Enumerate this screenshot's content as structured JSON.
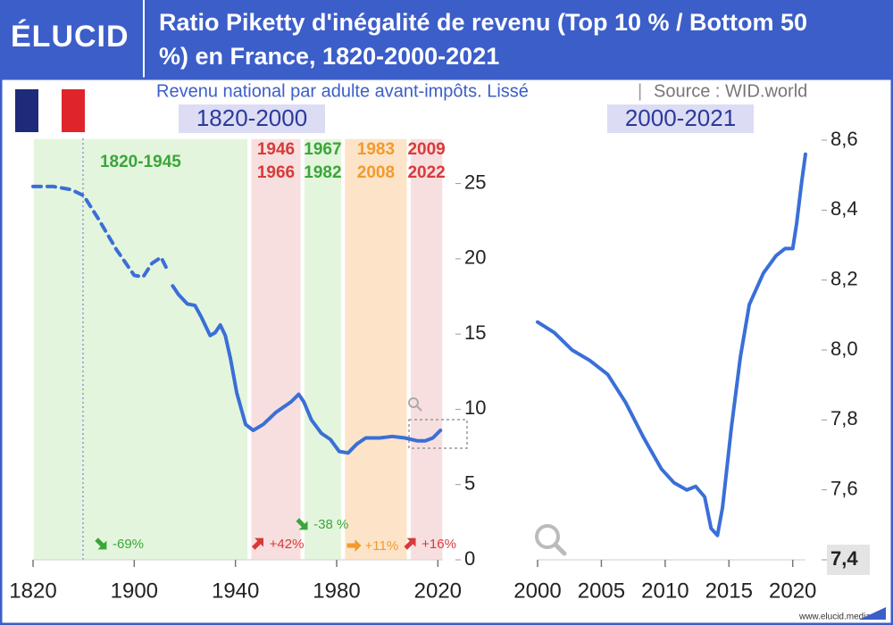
{
  "header": {
    "logo": "ÉLUCID",
    "title": "Ratio Piketty d'inégalité de revenu (Top 10 % / Bottom 50 %) en France, 1820-2000-2021",
    "subtitle": "Revenu national par adulte avant-impôts. Lissé",
    "source": "Source : WID.world"
  },
  "footer": "www.elucid.media",
  "chart_data": [
    {
      "type": "line",
      "title": "1820-2000",
      "x_tick_spacing": "even",
      "xlim": [
        1820,
        2022
      ],
      "xticks": [
        1820,
        1900,
        1940,
        1980,
        2020
      ],
      "ylim": [
        0,
        28
      ],
      "yticks": [
        0,
        5,
        10,
        15,
        20,
        25
      ],
      "series": [
        {
          "color": "#3a6fd8",
          "dashed": true,
          "x": [
            1820,
            1836,
            1850,
            1860,
            1872,
            1886,
            1900,
            1903.5,
            1907,
            1910.6,
            1912.7
          ],
          "values": [
            24.8,
            24.8,
            24.6,
            24.2,
            22.6,
            20.6,
            18.9,
            18.8,
            19.7,
            20.1,
            19.4
          ]
        },
        {
          "color": "#3a6fd8",
          "dashed": false,
          "x": [
            1915.2,
            1917.6,
            1921,
            1924,
            1926.6,
            1930,
            1932,
            1934,
            1936,
            1938,
            1940.5,
            1944,
            1947,
            1951,
            1956,
            1962,
            1965,
            1967,
            1970,
            1974,
            1977.5,
            1981,
            1984.5,
            1988,
            1991.5,
            1997,
            2002,
            2007,
            2012,
            2015,
            2018,
            2021
          ],
          "values": [
            18.2,
            17.6,
            17.0,
            16.9,
            16.1,
            14.9,
            15.1,
            15.6,
            14.9,
            13.4,
            11.1,
            9.0,
            8.6,
            9.0,
            9.8,
            10.5,
            11.0,
            10.5,
            9.3,
            8.4,
            8.0,
            7.2,
            7.1,
            7.7,
            8.1,
            8.1,
            8.2,
            8.1,
            7.9,
            7.9,
            8.1,
            8.6
          ]
        }
      ],
      "periods": [
        {
          "label": "1820-1945",
          "start": 1820,
          "end": 1945,
          "change": "-69%",
          "color": "#3aa63a",
          "shade": "#e4f5dd"
        },
        {
          "start": 1946,
          "end": 1966,
          "change": "+42%",
          "color": "#d83a3a",
          "shade": "#f8dfdf"
        },
        {
          "start": 1967,
          "end": 1982,
          "change": "-38 %",
          "color": "#3aa63a",
          "shade": "#e4f5dd"
        },
        {
          "start": 1983,
          "end": 2008,
          "change": "+11%",
          "color": "#f39a2c",
          "shade": "#fde4c9"
        },
        {
          "start": 2009,
          "end": 2022,
          "change": "+16%",
          "color": "#d83a3a",
          "shade": "#f8dfdf"
        }
      ]
    },
    {
      "type": "line",
      "title": "2000-2021",
      "xlim": [
        2000,
        2021
      ],
      "xticks": [
        2000,
        2005,
        2010,
        2015,
        2020
      ],
      "ylim": [
        7.4,
        8.6
      ],
      "yticks": [
        {
          "value": 7.4,
          "label": "7,4"
        },
        {
          "value": 7.6,
          "label": "7,6"
        },
        {
          "value": 7.8,
          "label": "7,8"
        },
        {
          "value": 8.0,
          "label": "8,0"
        },
        {
          "value": 8.2,
          "label": "8,2"
        },
        {
          "value": 8.4,
          "label": "8,4"
        },
        {
          "value": 8.6,
          "label": "8,6"
        }
      ],
      "series": [
        {
          "color": "#3a6fd8",
          "dashed": false,
          "x": [
            2000,
            2001.3,
            2002.7,
            2004.1,
            2005.5,
            2006.9,
            2008.3,
            2009.7,
            2010.7,
            2011.7,
            2012.4,
            2013.1,
            2013.6,
            2014.1,
            2014.5,
            2015.2,
            2015.9,
            2016.6,
            2017.7,
            2018.7,
            2019.4,
            2020,
            2020.3,
            2020.7,
            2021
          ],
          "values": [
            8.08,
            8.05,
            8.0,
            7.97,
            7.93,
            7.85,
            7.75,
            7.66,
            7.62,
            7.6,
            7.61,
            7.58,
            7.49,
            7.47,
            7.55,
            7.78,
            7.98,
            8.13,
            8.22,
            8.27,
            8.29,
            8.29,
            8.36,
            8.48,
            8.56
          ]
        }
      ]
    }
  ]
}
